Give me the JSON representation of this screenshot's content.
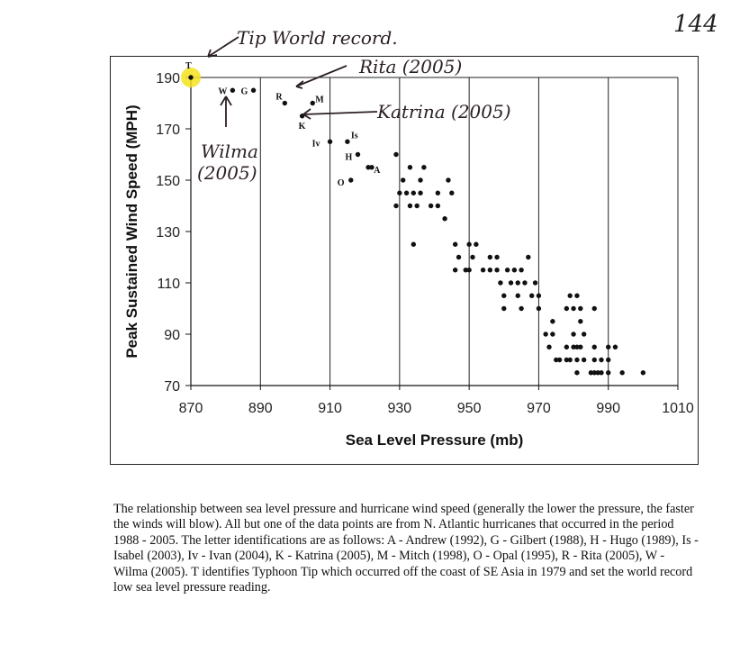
{
  "page_number": "144",
  "chart_data": {
    "type": "scatter",
    "title": "",
    "xlabel": "Sea Level Pressure (mb)",
    "ylabel": "Peak Sustained Wind Speed (MPH)",
    "xlim": [
      870,
      1010
    ],
    "ylim": [
      70,
      190
    ],
    "xticks": [
      870,
      890,
      910,
      930,
      950,
      970,
      990,
      1010
    ],
    "yticks": [
      70,
      90,
      110,
      130,
      150,
      170,
      190
    ],
    "grid": "vertical lines at x ticks",
    "points": [
      {
        "x": 870,
        "y": 190,
        "label": "T"
      },
      {
        "x": 882,
        "y": 185,
        "label": "W"
      },
      {
        "x": 888,
        "y": 185,
        "label": "G"
      },
      {
        "x": 897,
        "y": 180,
        "label": "R"
      },
      {
        "x": 905,
        "y": 180,
        "label": "M"
      },
      {
        "x": 902,
        "y": 175,
        "label": "K"
      },
      {
        "x": 910,
        "y": 165,
        "label": "Iv"
      },
      {
        "x": 915,
        "y": 165,
        "label": "Is"
      },
      {
        "x": 918,
        "y": 160,
        "label": "H"
      },
      {
        "x": 921,
        "y": 155,
        "label": "A"
      },
      {
        "x": 922,
        "y": 155,
        "label": ""
      },
      {
        "x": 916,
        "y": 150,
        "label": "O"
      },
      {
        "x": 929,
        "y": 160
      },
      {
        "x": 933,
        "y": 155
      },
      {
        "x": 937,
        "y": 155
      },
      {
        "x": 931,
        "y": 150
      },
      {
        "x": 936,
        "y": 150
      },
      {
        "x": 944,
        "y": 150
      },
      {
        "x": 930,
        "y": 145
      },
      {
        "x": 932,
        "y": 145
      },
      {
        "x": 934,
        "y": 145
      },
      {
        "x": 936,
        "y": 145
      },
      {
        "x": 941,
        "y": 145
      },
      {
        "x": 945,
        "y": 145
      },
      {
        "x": 929,
        "y": 140
      },
      {
        "x": 933,
        "y": 140
      },
      {
        "x": 935,
        "y": 140
      },
      {
        "x": 939,
        "y": 140
      },
      {
        "x": 941,
        "y": 140
      },
      {
        "x": 943,
        "y": 135
      },
      {
        "x": 934,
        "y": 125
      },
      {
        "x": 946,
        "y": 125
      },
      {
        "x": 950,
        "y": 125
      },
      {
        "x": 952,
        "y": 125
      },
      {
        "x": 947,
        "y": 120
      },
      {
        "x": 951,
        "y": 120
      },
      {
        "x": 946,
        "y": 115
      },
      {
        "x": 949,
        "y": 115
      },
      {
        "x": 950,
        "y": 115
      },
      {
        "x": 954,
        "y": 115
      },
      {
        "x": 956,
        "y": 115
      },
      {
        "x": 958,
        "y": 115
      },
      {
        "x": 961,
        "y": 115
      },
      {
        "x": 963,
        "y": 115
      },
      {
        "x": 965,
        "y": 115
      },
      {
        "x": 956,
        "y": 120
      },
      {
        "x": 958,
        "y": 120
      },
      {
        "x": 967,
        "y": 120
      },
      {
        "x": 959,
        "y": 110
      },
      {
        "x": 962,
        "y": 110
      },
      {
        "x": 964,
        "y": 110
      },
      {
        "x": 966,
        "y": 110
      },
      {
        "x": 969,
        "y": 110
      },
      {
        "x": 960,
        "y": 105
      },
      {
        "x": 964,
        "y": 105
      },
      {
        "x": 968,
        "y": 105
      },
      {
        "x": 970,
        "y": 105
      },
      {
        "x": 960,
        "y": 100
      },
      {
        "x": 965,
        "y": 100
      },
      {
        "x": 970,
        "y": 100
      },
      {
        "x": 979,
        "y": 105
      },
      {
        "x": 981,
        "y": 105
      },
      {
        "x": 982,
        "y": 100
      },
      {
        "x": 978,
        "y": 100
      },
      {
        "x": 980,
        "y": 100
      },
      {
        "x": 986,
        "y": 100
      },
      {
        "x": 974,
        "y": 95
      },
      {
        "x": 982,
        "y": 95
      },
      {
        "x": 972,
        "y": 90
      },
      {
        "x": 974,
        "y": 90
      },
      {
        "x": 980,
        "y": 90
      },
      {
        "x": 983,
        "y": 90
      },
      {
        "x": 973,
        "y": 85
      },
      {
        "x": 978,
        "y": 85
      },
      {
        "x": 980,
        "y": 85
      },
      {
        "x": 981,
        "y": 85
      },
      {
        "x": 982,
        "y": 85
      },
      {
        "x": 986,
        "y": 85
      },
      {
        "x": 990,
        "y": 85
      },
      {
        "x": 992,
        "y": 85
      },
      {
        "x": 975,
        "y": 80
      },
      {
        "x": 976,
        "y": 80
      },
      {
        "x": 978,
        "y": 80
      },
      {
        "x": 979,
        "y": 80
      },
      {
        "x": 981,
        "y": 80
      },
      {
        "x": 983,
        "y": 80
      },
      {
        "x": 986,
        "y": 80
      },
      {
        "x": 988,
        "y": 80
      },
      {
        "x": 990,
        "y": 80
      },
      {
        "x": 981,
        "y": 75
      },
      {
        "x": 985,
        "y": 75
      },
      {
        "x": 986,
        "y": 75
      },
      {
        "x": 987,
        "y": 75
      },
      {
        "x": 988,
        "y": 75
      },
      {
        "x": 990,
        "y": 75
      },
      {
        "x": 994,
        "y": 75
      },
      {
        "x": 1000,
        "y": 75
      }
    ]
  },
  "annotations": {
    "tip": "Tip World record.",
    "rita": "Rita (2005)",
    "katrina": "Katrina (2005)",
    "wilma_line1": "Wilma",
    "wilma_line2": "(2005)"
  },
  "highlight_color": "#f6e21c",
  "caption": "The relationship between sea level pressure and hurricane wind speed (generally the lower the pressure, the faster the winds will blow).  All but one of the data points are from N. Atlantic hurricanes that occurred in the period 1988 - 2005.  The letter identifications are as follows: A - Andrew (1992), G - Gilbert (1988), H - Hugo (1989), Is - Isabel (2003), Iv - Ivan (2004), K - Katrina (2005), M - Mitch (1998), O - Opal (1995), R - Rita (2005), W - Wilma (2005).  T identifies Typhoon Tip which occurred off the coast of SE Asia in 1979 and set the world record low sea level pressure reading."
}
